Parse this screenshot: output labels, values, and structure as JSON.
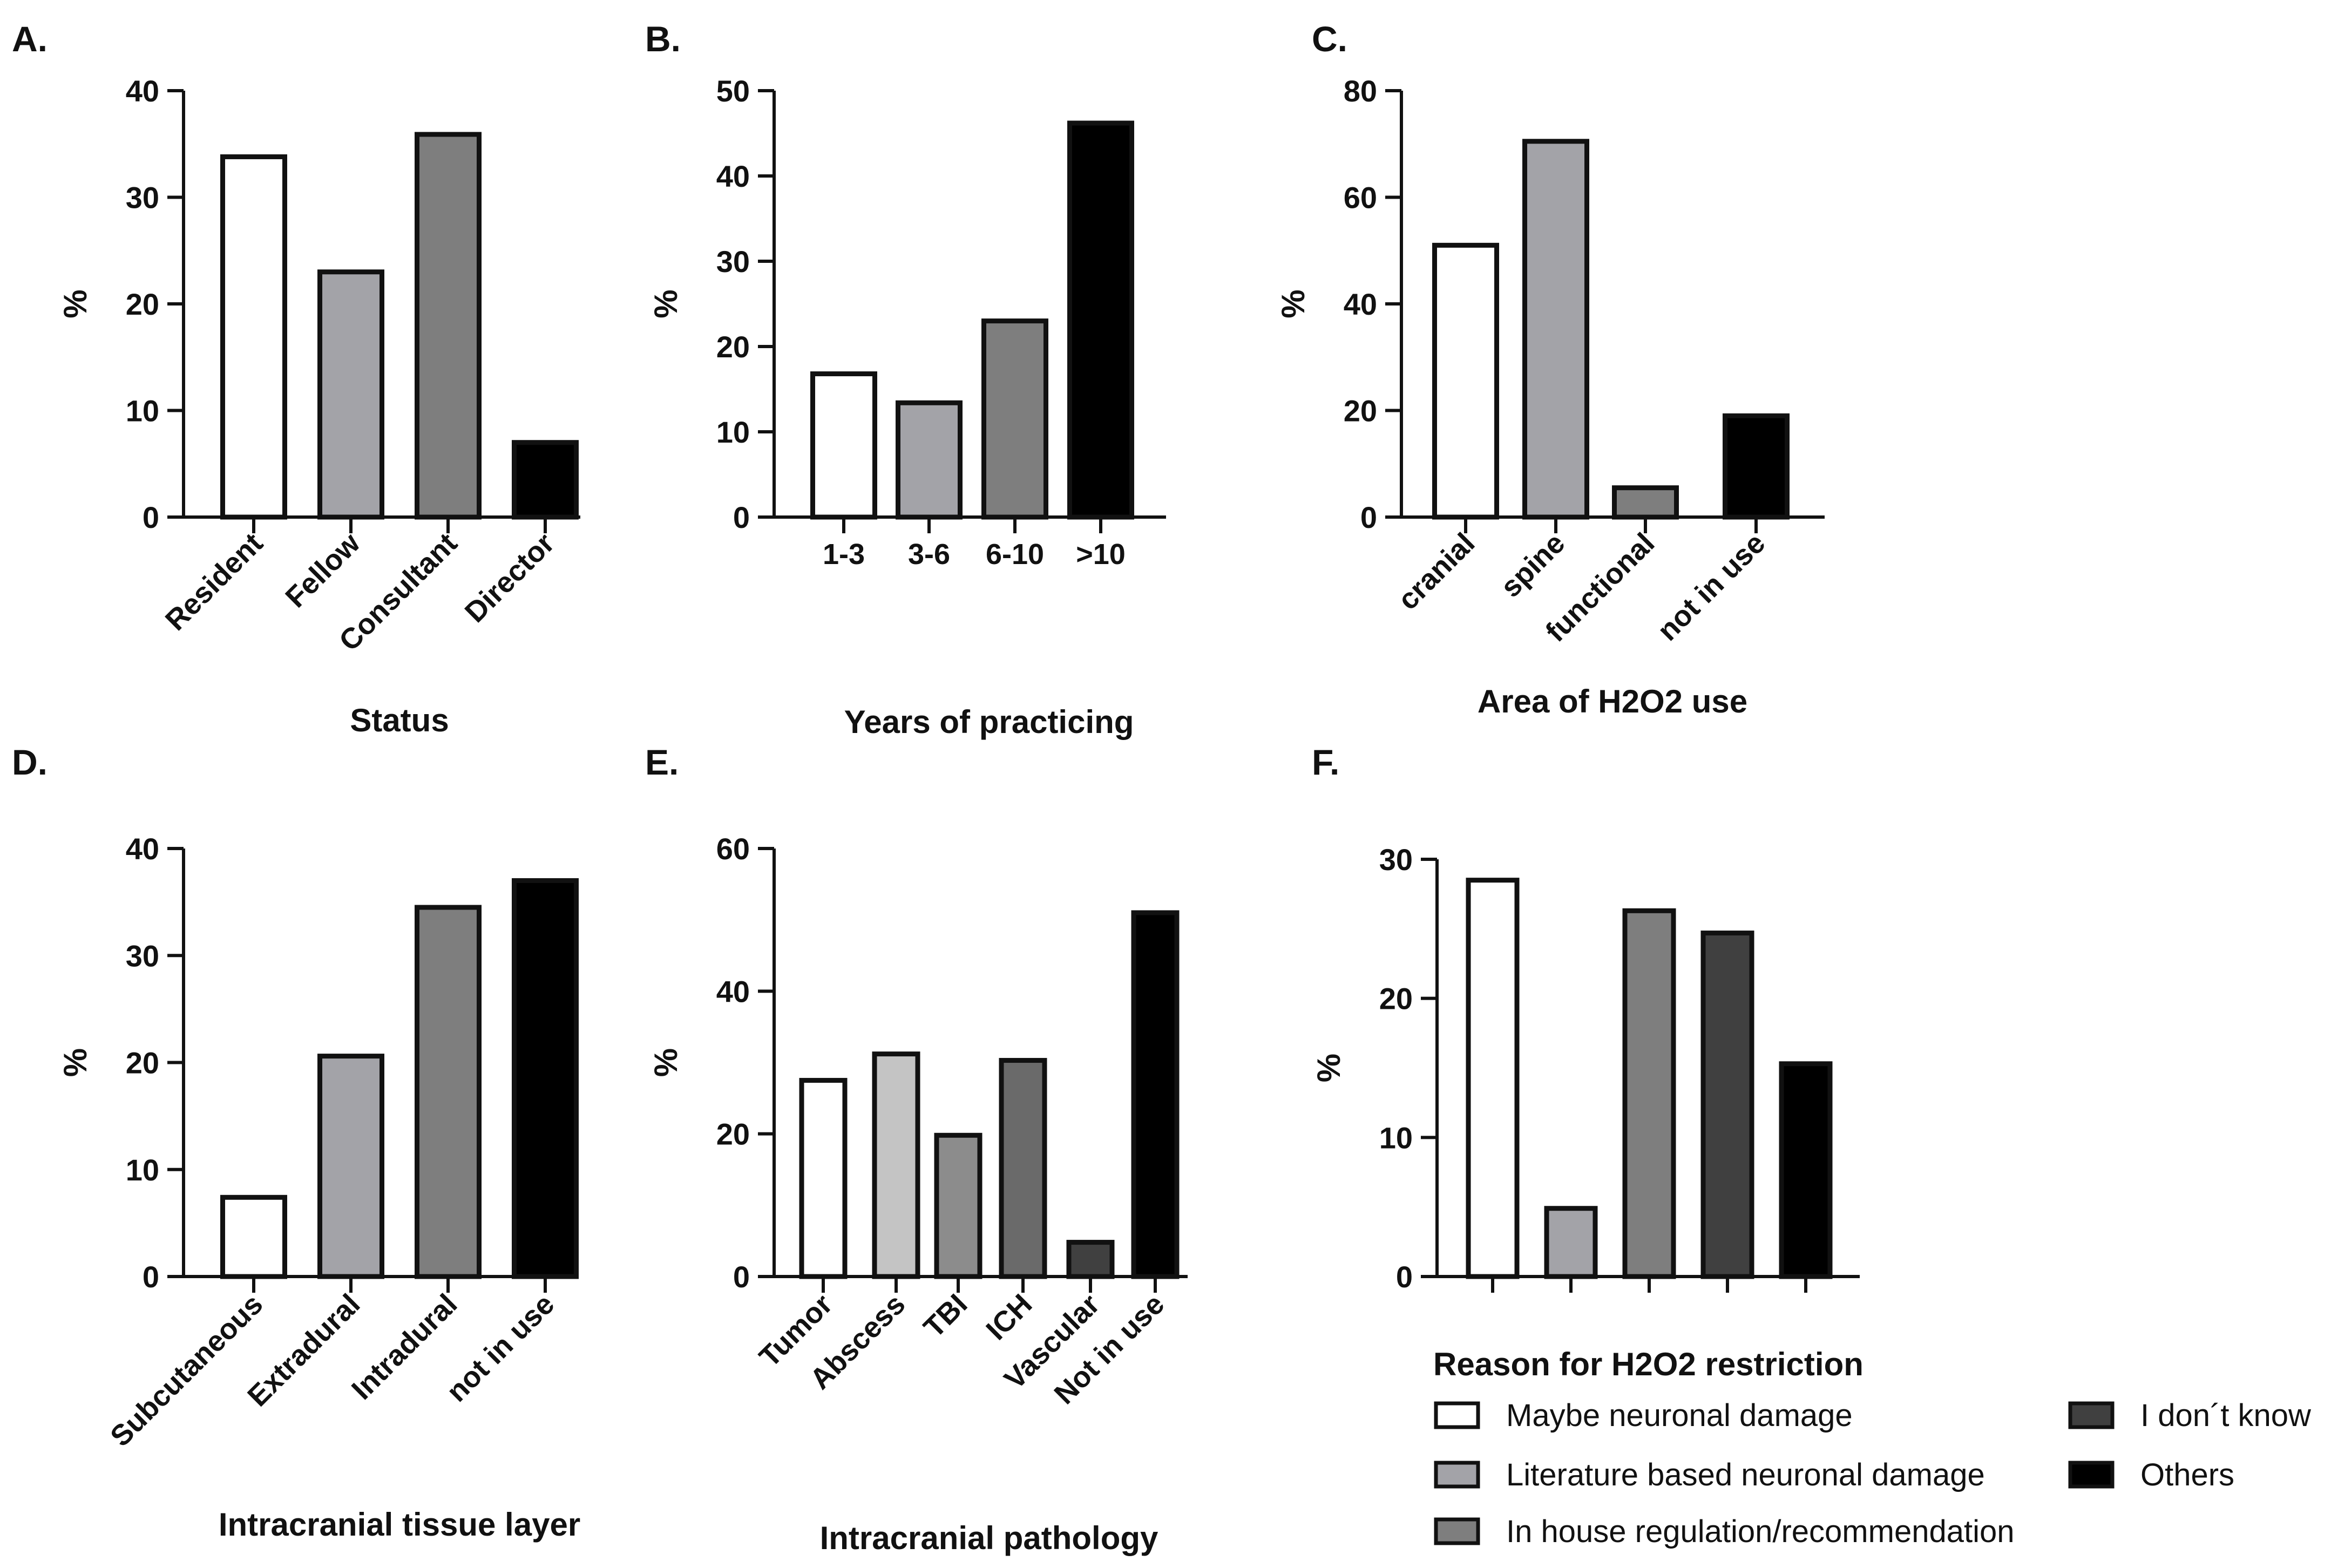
{
  "chart_data": [
    {
      "panel": "A.",
      "type": "bar",
      "categories": [
        "Resident",
        "Fellow",
        "Consultant",
        "Director"
      ],
      "values": [
        33.8,
        23.0,
        35.9,
        7.0
      ],
      "colors": [
        "#ffffff",
        "#a3a3a8",
        "#7e7e7e",
        "#000000"
      ],
      "xlabel": "Status",
      "ylabel": "%",
      "ylim": [
        0,
        40
      ],
      "yticks": [
        "0",
        "10",
        "20",
        "30",
        "40"
      ],
      "tick_rotation": "diagonal"
    },
    {
      "panel": "B.",
      "type": "bar",
      "categories": [
        "1-3",
        "3-6",
        "6-10",
        ">10"
      ],
      "values": [
        16.8,
        13.4,
        23.0,
        46.2
      ],
      "colors": [
        "#ffffff",
        "#a3a3a8",
        "#7e7e7e",
        "#000000"
      ],
      "xlabel": "Years of practicing",
      "ylabel": "%",
      "ylim": [
        0,
        50
      ],
      "yticks": [
        "0",
        "10",
        "20",
        "30",
        "40",
        "50"
      ],
      "tick_rotation": "none"
    },
    {
      "panel": "C.",
      "type": "bar",
      "categories": [
        "cranial",
        "spine",
        "functional",
        "not in use"
      ],
      "values": [
        51.0,
        70.5,
        5.5,
        19.0
      ],
      "colors": [
        "#ffffff",
        "#a3a3a8",
        "#7e7e7e",
        "#000000"
      ],
      "xlabel": "Area of H2O2 use",
      "ylabel": "%",
      "ylim": [
        0,
        80
      ],
      "yticks": [
        "0",
        "20",
        "40",
        "60",
        "80"
      ],
      "tick_rotation": "diagonal"
    },
    {
      "panel": "D.",
      "type": "bar",
      "categories": [
        "Subcutaneous",
        "Extradural",
        "Intradural",
        "not in use"
      ],
      "values": [
        7.4,
        20.6,
        34.5,
        37.0
      ],
      "colors": [
        "#ffffff",
        "#a3a3a8",
        "#7e7e7e",
        "#000000"
      ],
      "xlabel": "Intracranial tissue layer",
      "ylabel": "%",
      "ylim": [
        0,
        40
      ],
      "yticks": [
        "0",
        "10",
        "20",
        "30",
        "40"
      ],
      "tick_rotation": "diagonal"
    },
    {
      "panel": "E.",
      "type": "bar",
      "categories": [
        "Tumor",
        "Abscess",
        "TBI",
        "ICH",
        "Vascular",
        "Not in use"
      ],
      "values": [
        27.5,
        31.2,
        19.8,
        30.3,
        4.8,
        51.0
      ],
      "colors": [
        "#ffffff",
        "#c4c4c4",
        "#8c8c8c",
        "#6a6a6a",
        "#404040",
        "#000000"
      ],
      "xlabel": "Intracranial pathology",
      "ylabel": "%",
      "ylim": [
        0,
        60
      ],
      "yticks": [
        "0",
        "20",
        "40",
        "60"
      ],
      "tick_rotation": "diagonal"
    },
    {
      "panel": "F.",
      "type": "bar",
      "categories": [
        "Maybe neuronal damage",
        "Literature based neuronal damage",
        "In house regulation/recommendation",
        "I don´t know",
        "Others"
      ],
      "values": [
        28.5,
        4.9,
        26.3,
        24.7,
        15.3
      ],
      "colors": [
        "#ffffff",
        "#a3a3a8",
        "#7e7e7e",
        "#404040",
        "#000000"
      ],
      "xlabel": "",
      "ylabel": "%",
      "ylim": [
        0,
        30
      ],
      "yticks": [
        "0",
        "10",
        "20",
        "30"
      ],
      "tick_rotation": "none",
      "hide_tick_labels": true,
      "legend_title": "Reason for H2O2 restriction",
      "legend_position": "bottom"
    }
  ]
}
